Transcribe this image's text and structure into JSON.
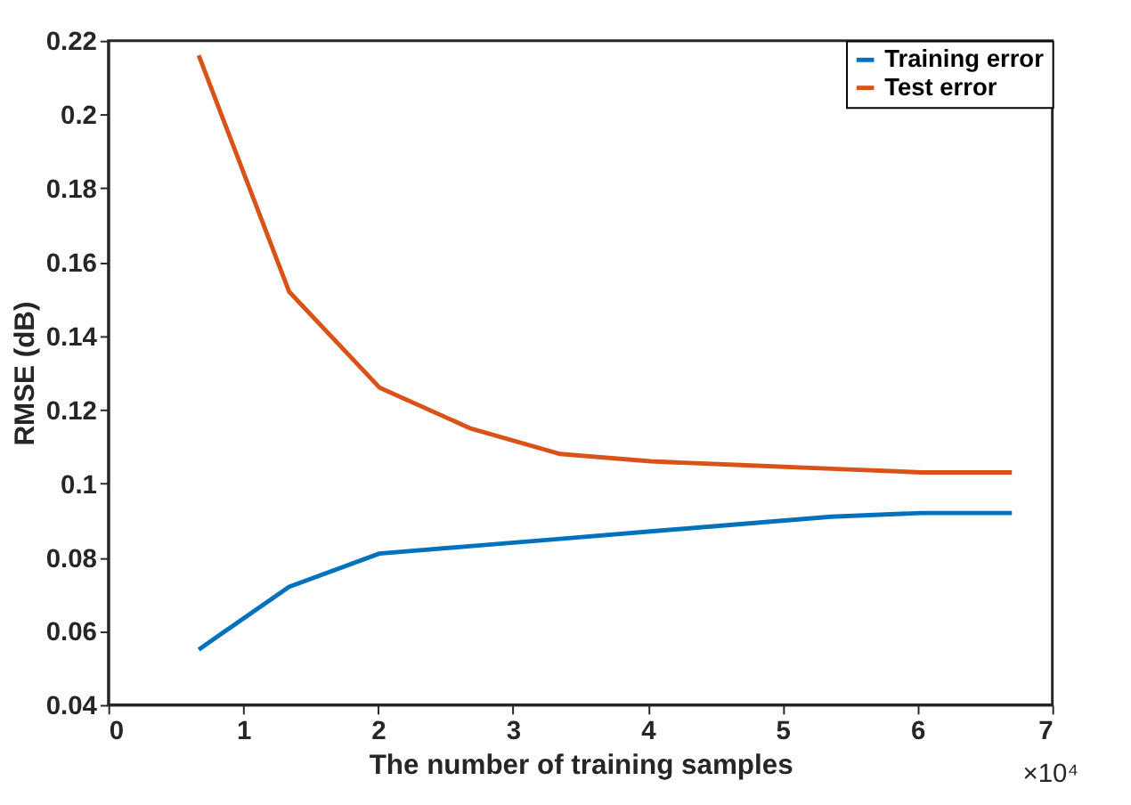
{
  "chart_data": {
    "type": "line",
    "xlabel": "The number of training samples",
    "ylabel": "RMSE (dB)",
    "x": [
      0.67,
      1.34,
      2.01,
      2.68,
      3.35,
      4.02,
      4.69,
      5.36,
      6.03,
      6.7
    ],
    "series": [
      {
        "name": "Training error",
        "color": "#0072bd",
        "values": [
          0.055,
          0.072,
          0.081,
          0.083,
          0.085,
          0.087,
          0.089,
          0.091,
          0.092,
          0.092
        ]
      },
      {
        "name": "Test error",
        "color": "#d95319",
        "values": [
          0.216,
          0.152,
          0.126,
          0.115,
          0.108,
          0.106,
          0.105,
          0.104,
          0.103,
          0.103
        ]
      }
    ],
    "xlim": [
      0,
      7
    ],
    "xticks": [
      0,
      1,
      2,
      3,
      4,
      5,
      6,
      7
    ],
    "ylim": [
      0.04,
      0.22
    ],
    "yticks": [
      0.04,
      0.06,
      0.08,
      0.1,
      0.12,
      0.14,
      0.16,
      0.18,
      0.2,
      0.22
    ],
    "annotations": [
      "×10⁴"
    ],
    "grid": false,
    "legend": "top right",
    "marker": "none",
    "line_style": "solid"
  }
}
